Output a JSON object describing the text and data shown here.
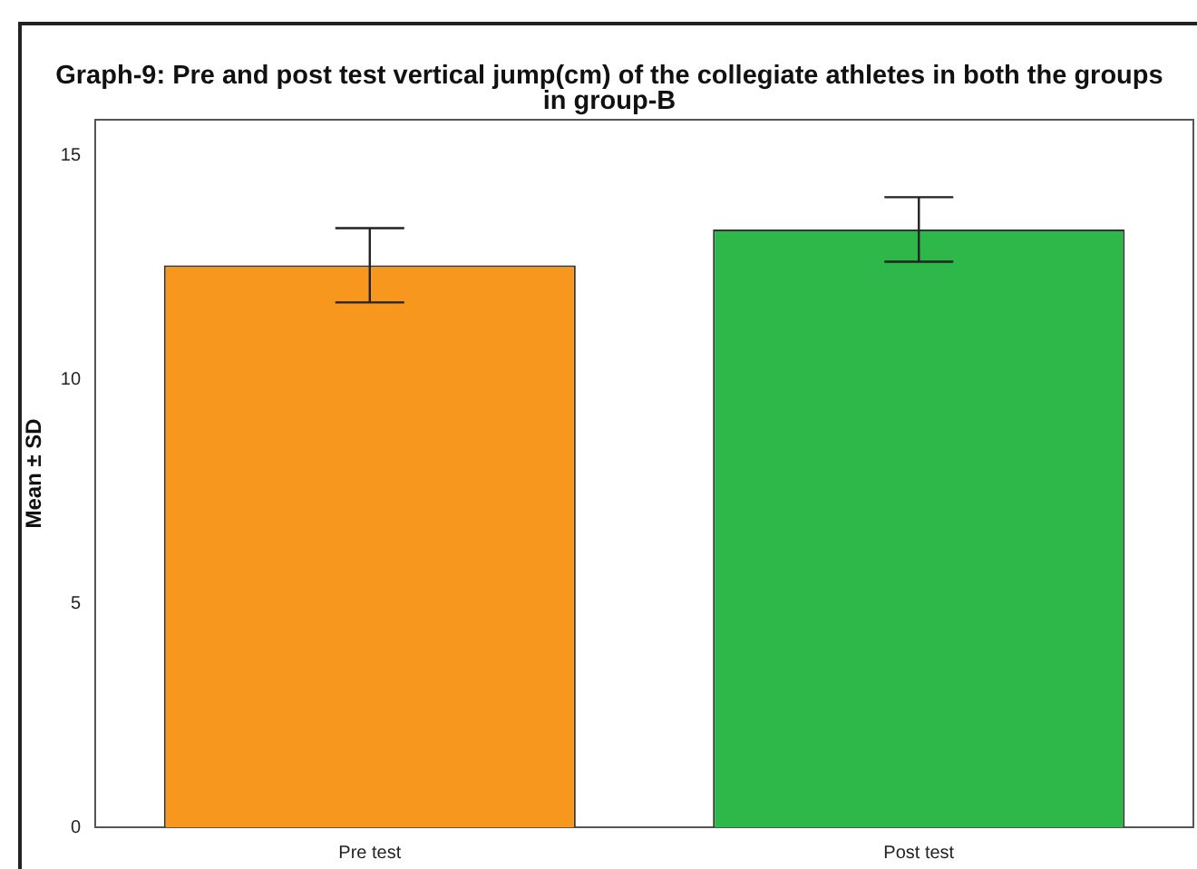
{
  "chart_data": {
    "type": "bar",
    "title": "Graph-9: Pre and post test vertical jump(cm)  of the collegiate athletes in both the groups in group-B",
    "ylabel": "Mean ± SD",
    "categories": [
      "Pre test",
      "Post test"
    ],
    "values": [
      12.55,
      13.35
    ],
    "colors": [
      "#f7971e",
      "#2fb84a"
    ],
    "errors": [
      0.83,
      0.72
    ],
    "ylim": [
      0,
      15.8
    ],
    "yticks": [
      0,
      5,
      10,
      15
    ],
    "grid": false,
    "legend": false
  }
}
